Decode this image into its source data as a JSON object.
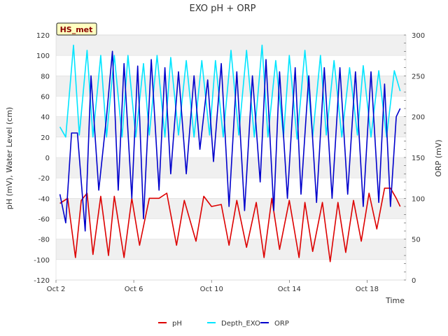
{
  "chart_data": {
    "type": "line",
    "title": "EXO pH + ORP",
    "xlabel": "Time",
    "ylabel": "pH (mV), Water Level (cm)",
    "y2label": "ORP (mV)",
    "badge": "HS_met",
    "x_ticks": [
      "Oct 2",
      "Oct 6",
      "Oct 10",
      "Oct 14",
      "Oct 18"
    ],
    "x_tick_days": [
      2,
      6,
      10,
      14,
      18
    ],
    "xlim_days": [
      2,
      20
    ],
    "ylim": [
      -120,
      120
    ],
    "y_ticks": [
      -120,
      -100,
      -80,
      -60,
      -40,
      -20,
      0,
      20,
      40,
      60,
      80,
      100,
      120
    ],
    "y2lim": [
      0,
      300
    ],
    "y2_ticks": [
      0,
      50,
      100,
      150,
      200,
      250,
      300
    ],
    "grid": "horizontal banded",
    "legend_position": "bottom",
    "series": [
      {
        "name": "pH",
        "axis": "left",
        "color": "#dd0000",
        "x": [
          2.2,
          2.6,
          3.0,
          3.3,
          3.6,
          3.9,
          4.3,
          4.7,
          5.0,
          5.5,
          5.9,
          6.3,
          6.8,
          7.3,
          7.7,
          8.2,
          8.6,
          9.2,
          9.6,
          10.0,
          10.5,
          10.9,
          11.3,
          11.8,
          12.3,
          12.7,
          13.1,
          13.5,
          14.0,
          14.5,
          14.8,
          15.2,
          15.7,
          16.1,
          16.5,
          16.9,
          17.3,
          17.7,
          18.1,
          18.5,
          18.9,
          19.2,
          19.5,
          19.7
        ],
        "values": [
          -45,
          -40,
          -98,
          -42,
          -35,
          -95,
          -38,
          -96,
          -38,
          -98,
          -40,
          -86,
          -40,
          -40,
          -35,
          -86,
          -42,
          -82,
          -38,
          -48,
          -46,
          -86,
          -42,
          -88,
          -44,
          -98,
          -40,
          -90,
          -42,
          -98,
          -44,
          -92,
          -44,
          -102,
          -44,
          -93,
          -42,
          -82,
          -35,
          -70,
          -30,
          -30,
          -40,
          -48
        ]
      },
      {
        "name": "Depth_EXO",
        "axis": "left",
        "color": "#00e5ff",
        "x": [
          2.2,
          2.5,
          2.9,
          3.2,
          3.6,
          3.9,
          4.3,
          4.6,
          5.0,
          5.4,
          5.7,
          6.1,
          6.5,
          6.8,
          7.2,
          7.6,
          7.9,
          8.3,
          8.7,
          9.1,
          9.5,
          9.9,
          10.2,
          10.6,
          11.0,
          11.4,
          11.8,
          12.2,
          12.6,
          12.9,
          13.3,
          13.7,
          14.0,
          14.4,
          14.8,
          15.2,
          15.6,
          15.9,
          16.3,
          16.7,
          17.1,
          17.5,
          17.8,
          18.2,
          18.6,
          19.0,
          19.4,
          19.7
        ],
        "values": [
          30,
          20,
          110,
          22,
          105,
          20,
          100,
          20,
          100,
          20,
          100,
          20,
          92,
          22,
          100,
          20,
          98,
          22,
          95,
          20,
          95,
          22,
          95,
          20,
          105,
          22,
          105,
          20,
          110,
          20,
          95,
          20,
          100,
          18,
          105,
          20,
          100,
          22,
          95,
          20,
          88,
          22,
          90,
          20,
          85,
          20,
          85,
          65
        ]
      },
      {
        "name": "ORP",
        "axis": "right",
        "color": "#0000cc",
        "x": [
          2.2,
          2.5,
          2.8,
          3.1,
          3.5,
          3.8,
          4.2,
          4.6,
          4.9,
          5.2,
          5.5,
          5.9,
          6.2,
          6.5,
          6.9,
          7.3,
          7.6,
          7.9,
          8.3,
          8.7,
          9.1,
          9.4,
          9.8,
          10.1,
          10.5,
          10.9,
          11.3,
          11.7,
          12.1,
          12.5,
          12.8,
          13.2,
          13.5,
          13.9,
          14.3,
          14.6,
          15.0,
          15.4,
          15.8,
          16.2,
          16.6,
          17.0,
          17.4,
          17.8,
          18.2,
          18.6,
          18.9,
          19.2,
          19.5,
          19.7
        ],
        "values": [
          105,
          70,
          180,
          180,
          60,
          250,
          110,
          200,
          280,
          110,
          265,
          100,
          262,
          75,
          270,
          110,
          260,
          130,
          255,
          130,
          250,
          160,
          245,
          145,
          265,
          90,
          255,
          85,
          250,
          120,
          270,
          85,
          255,
          100,
          260,
          105,
          250,
          95,
          260,
          100,
          260,
          105,
          255,
          90,
          255,
          95,
          240,
          90,
          200,
          210
        ]
      }
    ]
  }
}
